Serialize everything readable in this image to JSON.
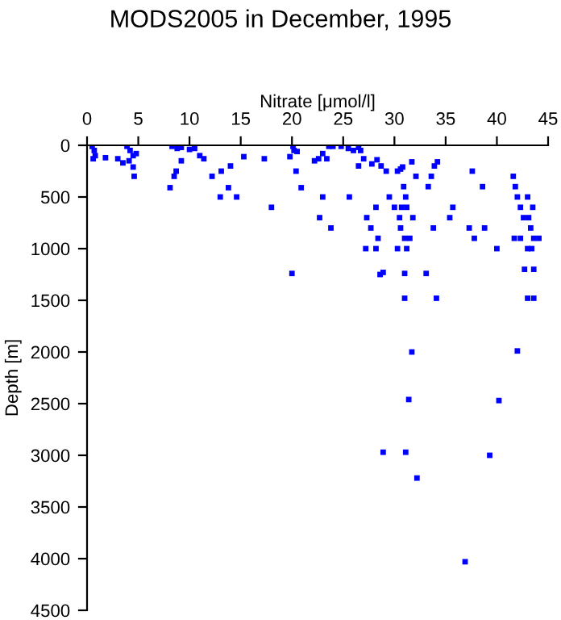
{
  "chart_data": {
    "type": "scatter",
    "title": "MODS2005 in December, 1995",
    "xlabel": "Nitrate [μmol/l]",
    "ylabel": "Depth [m]",
    "xlim": [
      0,
      45
    ],
    "xticks": [
      0,
      5,
      10,
      15,
      20,
      25,
      30,
      35,
      40,
      45
    ],
    "ylim": [
      4500,
      0
    ],
    "yticks": [
      0,
      500,
      1000,
      1500,
      2000,
      2500,
      3000,
      3500,
      4000,
      4500
    ],
    "marker": "square",
    "grid": false,
    "series": [
      {
        "color": "#0000ff",
        "x": [
          0.5,
          0.7,
          0.8,
          0.6,
          1.8,
          3.0,
          3.5,
          3.9,
          4.2,
          4.5,
          4.8,
          4.1,
          4.5,
          4.6,
          8.3,
          8.8,
          9.2,
          10.0,
          10.5,
          11.0,
          11.4,
          8.1,
          8.5,
          8.7,
          9.2,
          12.2,
          13.1,
          14.0,
          13.8,
          13.0,
          14.6,
          15.3,
          17.3,
          18.0,
          20.1,
          20.2,
          20.5,
          19.8,
          20.4,
          20.9,
          20.0,
          22.2,
          22.6,
          23.0,
          23.6,
          24.0,
          23.4,
          23.0,
          22.7,
          23.8,
          24.8,
          25.5,
          26.0,
          26.5,
          26.7,
          26.5,
          25.6,
          27.0,
          27.8,
          28.3,
          28.7,
          27.3,
          27.7,
          28.2,
          28.4,
          27.2,
          28.2,
          29.2,
          29.5,
          30.3,
          30.6,
          30.8,
          30.9,
          31.1,
          30.0,
          30.7,
          31.2,
          30.5,
          31.8,
          31.7,
          32.1,
          30.6,
          31.0,
          31.5,
          30.3,
          31.2,
          33.3,
          33.6,
          33.9,
          34.2,
          33.8,
          35.4,
          35.7,
          37.3,
          37.8,
          38.8,
          38.6,
          37.6,
          40.0,
          41.6,
          41.8,
          42.0,
          42.3,
          42.6,
          41.7,
          42.3,
          43.0,
          43.5,
          43.1,
          43.3,
          43.6,
          43.4,
          43.0,
          44.1,
          28.6,
          28.9,
          31.0,
          33.1,
          42.7,
          43.6,
          31.0,
          34.1,
          43.0,
          43.6,
          31.7,
          42.0,
          31.4,
          40.2,
          28.9,
          31.1,
          32.2,
          39.3,
          36.9
        ],
        "values": [
          10,
          50,
          100,
          130,
          120,
          130,
          170,
          10,
          50,
          100,
          80,
          150,
          210,
          300,
          10,
          30,
          20,
          40,
          30,
          100,
          130,
          410,
          300,
          250,
          150,
          300,
          250,
          200,
          410,
          500,
          500,
          110,
          130,
          600,
          10,
          50,
          60,
          110,
          250,
          410,
          1240,
          150,
          130,
          80,
          10,
          10,
          130,
          500,
          700,
          800,
          10,
          30,
          50,
          20,
          50,
          200,
          500,
          130,
          180,
          140,
          200,
          700,
          800,
          600,
          900,
          1000,
          1000,
          250,
          500,
          250,
          230,
          210,
          400,
          500,
          600,
          600,
          600,
          700,
          700,
          160,
          300,
          800,
          900,
          900,
          1000,
          1000,
          400,
          300,
          200,
          160,
          800,
          700,
          600,
          800,
          900,
          800,
          400,
          250,
          1000,
          300,
          400,
          500,
          600,
          700,
          900,
          900,
          500,
          600,
          700,
          800,
          900,
          1000,
          1000,
          900,
          1250,
          1230,
          1240,
          1240,
          1200,
          1200,
          1480,
          1480,
          1480,
          1480,
          2000,
          1990,
          2460,
          2470,
          2970,
          2970,
          3220,
          3000,
          4030
        ]
      }
    ]
  }
}
